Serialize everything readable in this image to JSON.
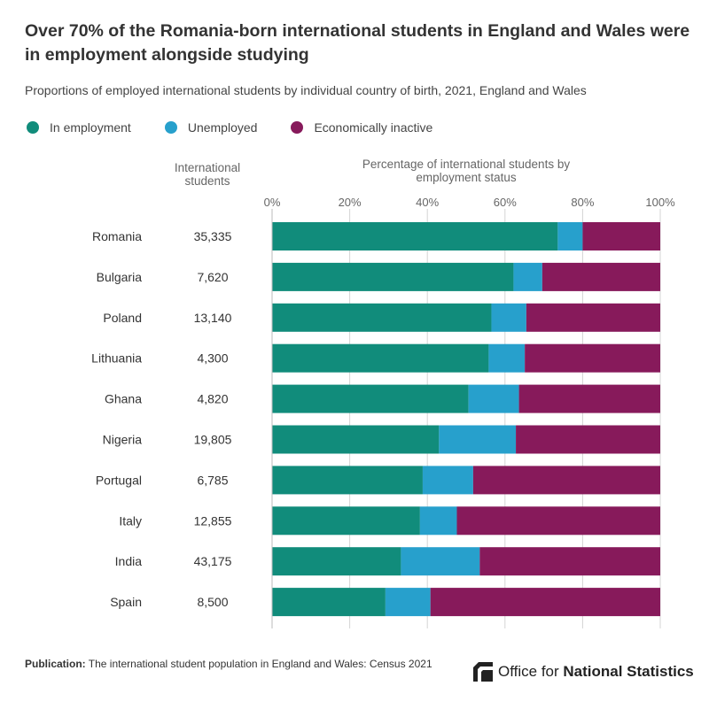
{
  "title": "Over 70% of the Romania-born international students in England and Wales were in employment alongside studying",
  "subtitle": "Proportions of employed international students by individual country of birth, 2021, England and Wales",
  "legend": {
    "employed": "In employment",
    "unemployed": "Unemployed",
    "inactive": "Economically inactive"
  },
  "colors": {
    "employed": "#118c7b",
    "unemployed": "#27a0cc",
    "inactive": "#871a5b"
  },
  "column_heads": {
    "students": "International students",
    "percentage": "Percentage of international students by employment status"
  },
  "chart_data": {
    "type": "bar",
    "orientation": "horizontal",
    "stacked": true,
    "categories": [
      "Romania",
      "Bulgaria",
      "Poland",
      "Lithuania",
      "Ghana",
      "Nigeria",
      "Portugal",
      "Italy",
      "India",
      "Spain"
    ],
    "students": [
      "35,335",
      "7,620",
      "13,140",
      "4,300",
      "4,820",
      "19,805",
      "6,785",
      "12,855",
      "43,175",
      "8,500"
    ],
    "series": [
      {
        "name": "In employment",
        "values": [
          73.6,
          62.2,
          56.5,
          55.8,
          50.6,
          43.0,
          38.8,
          38.1,
          33.2,
          29.2
        ]
      },
      {
        "name": "Unemployed",
        "values": [
          6.4,
          7.4,
          9.0,
          9.3,
          13.0,
          19.8,
          13.0,
          9.5,
          20.3,
          11.6
        ]
      },
      {
        "name": "Economically inactive",
        "values": [
          20.0,
          30.4,
          34.5,
          34.9,
          36.4,
          37.2,
          48.2,
          52.4,
          46.5,
          59.2
        ]
      }
    ],
    "xlim": [
      0,
      100
    ],
    "ticks": [
      "0%",
      "20%",
      "40%",
      "60%",
      "80%",
      "100%"
    ],
    "grid": true,
    "legend_position": "top-left"
  },
  "footer": {
    "publication_label": "Publication:",
    "publication_text": "The international student population in England and Wales: Census 2021"
  },
  "logo": {
    "prefix": "Office for ",
    "strong": "National Statistics"
  }
}
